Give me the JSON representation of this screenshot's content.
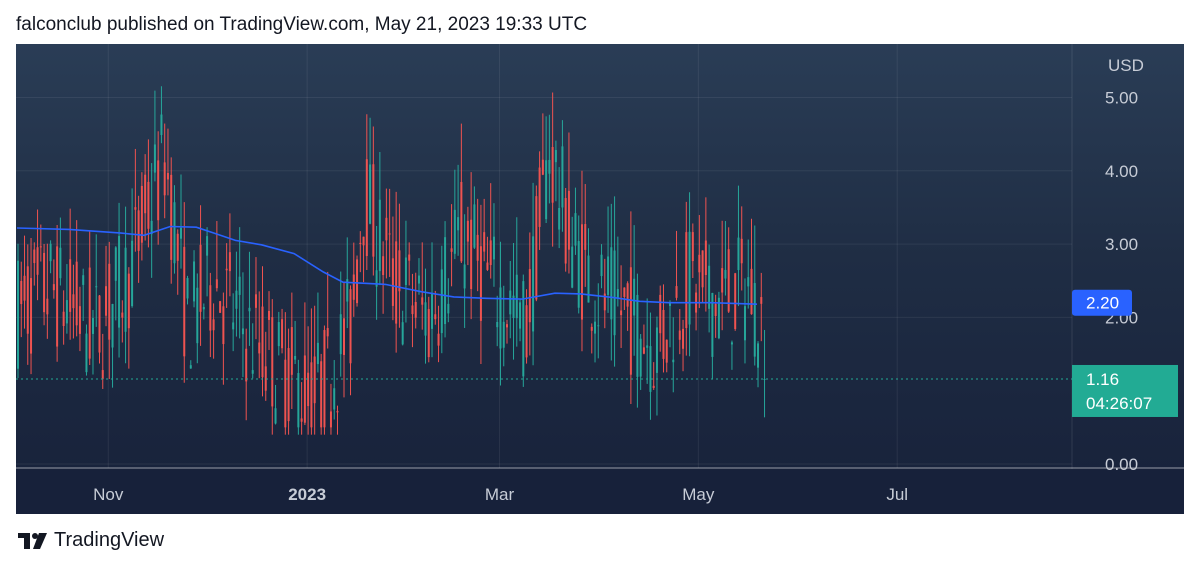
{
  "header": {
    "text": "falconclub published on TradingView.com, May 21, 2023 19:33 UTC"
  },
  "footer": {
    "brand": "TradingView"
  },
  "colors": {
    "up": "#26a69a",
    "down": "#ef5350",
    "ma": "#2962ff",
    "last_price_bg": "#22ab94",
    "ma_label_bg": "#2962ff"
  },
  "chart_data": {
    "type": "candlestick",
    "currency": "USD",
    "y_ticks": [
      "0.00",
      "2.00",
      "3.00",
      "4.00",
      "5.00"
    ],
    "x_ticks": [
      {
        "label": "Nov",
        "date": "2022-11-01",
        "bold": false
      },
      {
        "label": "2023",
        "date": "2023-01-01",
        "bold": true
      },
      {
        "label": "Mar",
        "date": "2023-03-01",
        "bold": false
      },
      {
        "label": "May",
        "date": "2023-05-01",
        "bold": false
      },
      {
        "label": "Jul",
        "date": "2023-07-01",
        "bold": false
      }
    ],
    "x_range": [
      "2022-10-04",
      "2023-08-20"
    ],
    "moving_average": {
      "value_label": "2.20",
      "points": [
        [
          "2022-10-04",
          3.22
        ],
        [
          "2022-10-20",
          3.2
        ],
        [
          "2022-11-05",
          3.15
        ],
        [
          "2022-11-12",
          3.12
        ],
        [
          "2022-11-20",
          3.24
        ],
        [
          "2022-11-28",
          3.23
        ],
        [
          "2022-12-04",
          3.14
        ],
        [
          "2022-12-10",
          3.05
        ],
        [
          "2022-12-18",
          2.99
        ],
        [
          "2022-12-28",
          2.87
        ],
        [
          "2023-01-06",
          2.62
        ],
        [
          "2023-01-12",
          2.48
        ],
        [
          "2023-01-25",
          2.45
        ],
        [
          "2023-02-05",
          2.35
        ],
        [
          "2023-02-15",
          2.28
        ],
        [
          "2023-02-25",
          2.26
        ],
        [
          "2023-03-08",
          2.25
        ],
        [
          "2023-03-18",
          2.33
        ],
        [
          "2023-03-26",
          2.32
        ],
        [
          "2023-04-05",
          2.27
        ],
        [
          "2023-04-13",
          2.22
        ],
        [
          "2023-04-22",
          2.2
        ],
        [
          "2023-05-05",
          2.2
        ],
        [
          "2023-05-19",
          2.18
        ]
      ]
    },
    "last_price": {
      "value": "1.16",
      "countdown": "04:26:07"
    }
  }
}
